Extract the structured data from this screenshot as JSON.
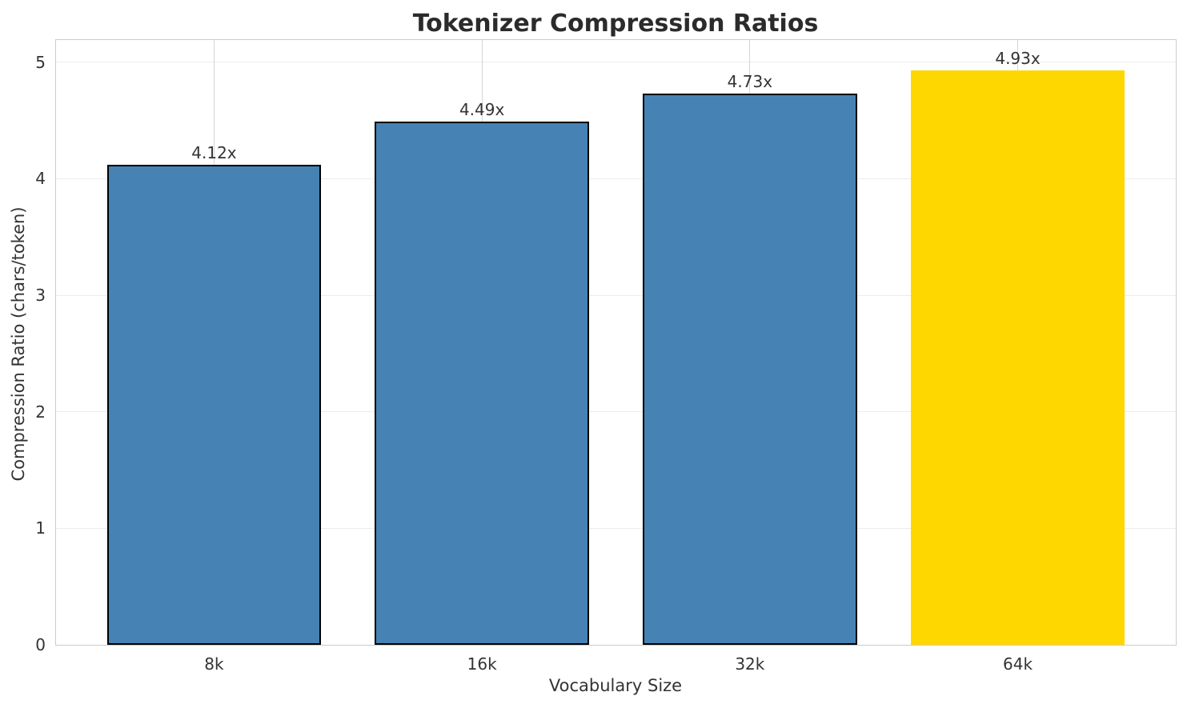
{
  "chart_data": {
    "type": "bar",
    "title": "Tokenizer Compression Ratios",
    "xlabel": "Vocabulary Size",
    "ylabel": "Compression Ratio (chars/token)",
    "categories": [
      "8k",
      "16k",
      "32k",
      "64k"
    ],
    "values": [
      4.12,
      4.49,
      4.73,
      4.93
    ],
    "bars": [
      {
        "category": "8k",
        "value": 4.12,
        "label": "4.12x",
        "color": "#4682b4",
        "edge_color": "#000000"
      },
      {
        "category": "16k",
        "value": 4.49,
        "label": "4.49x",
        "color": "#4682b4",
        "edge_color": "#000000"
      },
      {
        "category": "32k",
        "value": 4.73,
        "label": "4.73x",
        "color": "#4682b4",
        "edge_color": "#000000"
      },
      {
        "category": "64k",
        "value": 4.93,
        "label": "4.93x",
        "color": "#ffd700",
        "edge_color": "none"
      }
    ],
    "yticks": [
      0,
      1,
      2,
      3,
      4,
      5
    ],
    "ylim": [
      0,
      5.19
    ],
    "xlim": [
      -0.59,
      3.59
    ],
    "bar_width": 0.8,
    "grid": {
      "horizontal": true,
      "vertical": true
    },
    "legend": "none",
    "colors": {
      "default_bar": "#4682b4",
      "highlight_bar": "#ffd700",
      "bar_edge": "#000000",
      "grid_horizontal": "#ececec",
      "grid_vertical": "#d6d6d6",
      "spine": "#cbcbcb",
      "text": "#333333",
      "title_text": "#2b2b2b",
      "background": "#ffffff"
    }
  }
}
